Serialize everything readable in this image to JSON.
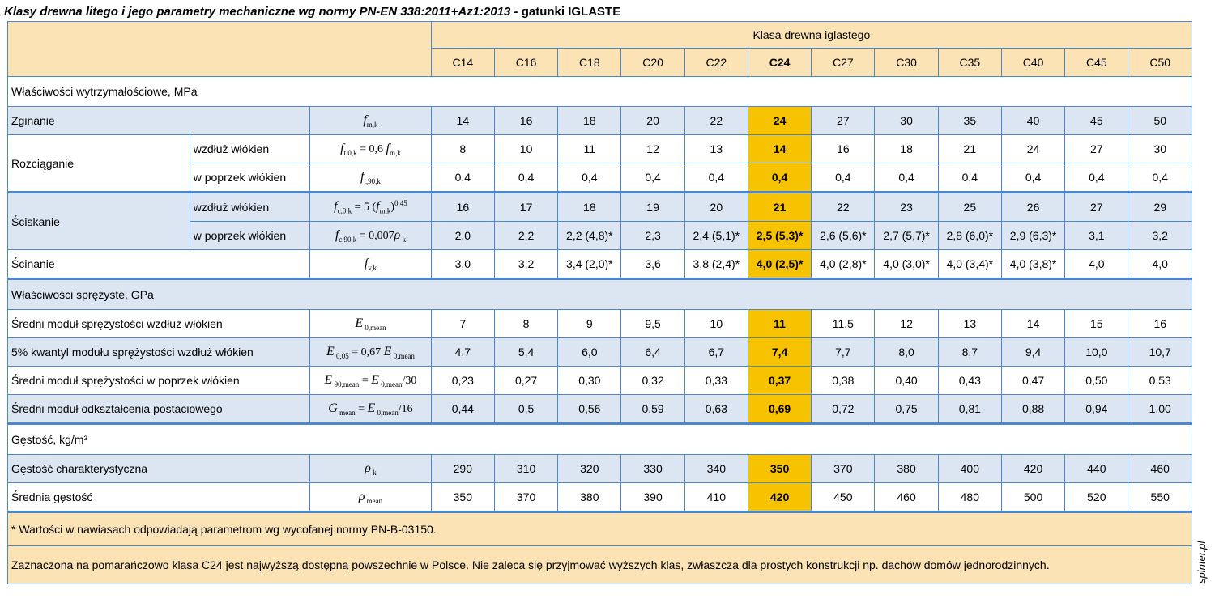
{
  "title": {
    "italic": "Klasy drewna litego i jego parametry mechaniczne wg normy PN-EN 338:2011+Az1:2013 -",
    "normal": "gatunki IGLASTE"
  },
  "header": {
    "group_label": "Klasa drewna iglastego",
    "classes": [
      "C14",
      "C16",
      "C18",
      "C20",
      "C22",
      "C24",
      "C27",
      "C30",
      "C35",
      "C40",
      "C45",
      "C50"
    ],
    "highlight": "C24"
  },
  "sections": {
    "strength": "Właściwości wytrzymałościowe, MPa",
    "elastic": "Właściwości sprężyste, GPa",
    "density": "Gęstość, kg/m³"
  },
  "rows": {
    "bending": {
      "label": "Zginanie",
      "values": [
        "14",
        "16",
        "18",
        "20",
        "22",
        "24",
        "27",
        "30",
        "35",
        "40",
        "45",
        "50"
      ]
    },
    "tension_group": "Rozciąganie",
    "tension_par": {
      "sub": "wzdłuż włókien",
      "values": [
        "8",
        "10",
        "11",
        "12",
        "13",
        "14",
        "16",
        "18",
        "21",
        "24",
        "27",
        "30"
      ]
    },
    "tension_perp": {
      "sub": "w poprzek włókien",
      "values": [
        "0,4",
        "0,4",
        "0,4",
        "0,4",
        "0,4",
        "0,4",
        "0,4",
        "0,4",
        "0,4",
        "0,4",
        "0,4",
        "0,4"
      ]
    },
    "compression_group": "Ściskanie",
    "comp_par": {
      "sub": "wzdłuż włókien",
      "values": [
        "16",
        "17",
        "18",
        "19",
        "20",
        "21",
        "22",
        "23",
        "25",
        "26",
        "27",
        "29"
      ]
    },
    "comp_perp": {
      "sub": "w poprzek włókien",
      "values": [
        "2,0",
        "2,2",
        "2,2 (4,8)*",
        "2,3",
        "2,4 (5,1)*",
        "2,5 (5,3)*",
        "2,6 (5,6)*",
        "2,7 (5,7)*",
        "2,8 (6,0)*",
        "2,9 (6,3)*",
        "3,1",
        "3,2"
      ]
    },
    "shear": {
      "label": "Ścinanie",
      "values": [
        "3,0",
        "3,2",
        "3,4 (2,0)*",
        "3,6",
        "3,8 (2,4)*",
        "4,0 (2,5)*",
        "4,0 (2,8)*",
        "4,0 (3,0)*",
        "4,0 (3,4)*",
        "4,0 (3,8)*",
        "4,0",
        "4,0"
      ]
    },
    "e_mean": {
      "label": "Średni moduł sprężystości wzdłuż włókien",
      "values": [
        "7",
        "8",
        "9",
        "9,5",
        "10",
        "11",
        "11,5",
        "12",
        "13",
        "14",
        "15",
        "16"
      ]
    },
    "e_005": {
      "label": "5% kwantyl modułu sprężystości wzdłuż włókien",
      "values": [
        "4,7",
        "5,4",
        "6,0",
        "6,4",
        "6,7",
        "7,4",
        "7,7",
        "8,0",
        "8,7",
        "9,4",
        "10,0",
        "10,7"
      ]
    },
    "e_90": {
      "label": "Średni moduł sprężystości w poprzek włókien",
      "values": [
        "0,23",
        "0,27",
        "0,30",
        "0,32",
        "0,33",
        "0,37",
        "0,38",
        "0,40",
        "0,43",
        "0,47",
        "0,50",
        "0,53"
      ]
    },
    "g_mean": {
      "label": "Średni moduł odkształcenia postaciowego",
      "values": [
        "0,44",
        "0,5",
        "0,56",
        "0,59",
        "0,63",
        "0,69",
        "0,72",
        "0,75",
        "0,81",
        "0,88",
        "0,94",
        "1,00"
      ]
    },
    "rho_k": {
      "label": "Gęstość charakterystyczna",
      "values": [
        "290",
        "310",
        "320",
        "330",
        "340",
        "350",
        "370",
        "380",
        "400",
        "420",
        "440",
        "460"
      ]
    },
    "rho_mean": {
      "label": "Średnia gęstość",
      "values": [
        "350",
        "370",
        "380",
        "390",
        "410",
        "420",
        "450",
        "460",
        "480",
        "500",
        "520",
        "550"
      ]
    }
  },
  "notes": {
    "asterisk": "* Wartości w nawiasach odpowiadają parametrom wg wycofanej normy PN-B-03150.",
    "highlight": "Zaznaczona na pomarańczowo klasa C24 jest najwyższą dostępną powszechnie w Polsce. Nie zaleca się przyjmować wyższych klas, zwłaszcza dla prostych konstrukcji np. dachów domów jednorodzinnych."
  },
  "watermark": "spinter.pl",
  "colors": {
    "highlight": "#f7c200",
    "header_bg": "#fbe3b5",
    "band": "#dce6f2",
    "border": "#4a87cf"
  }
}
